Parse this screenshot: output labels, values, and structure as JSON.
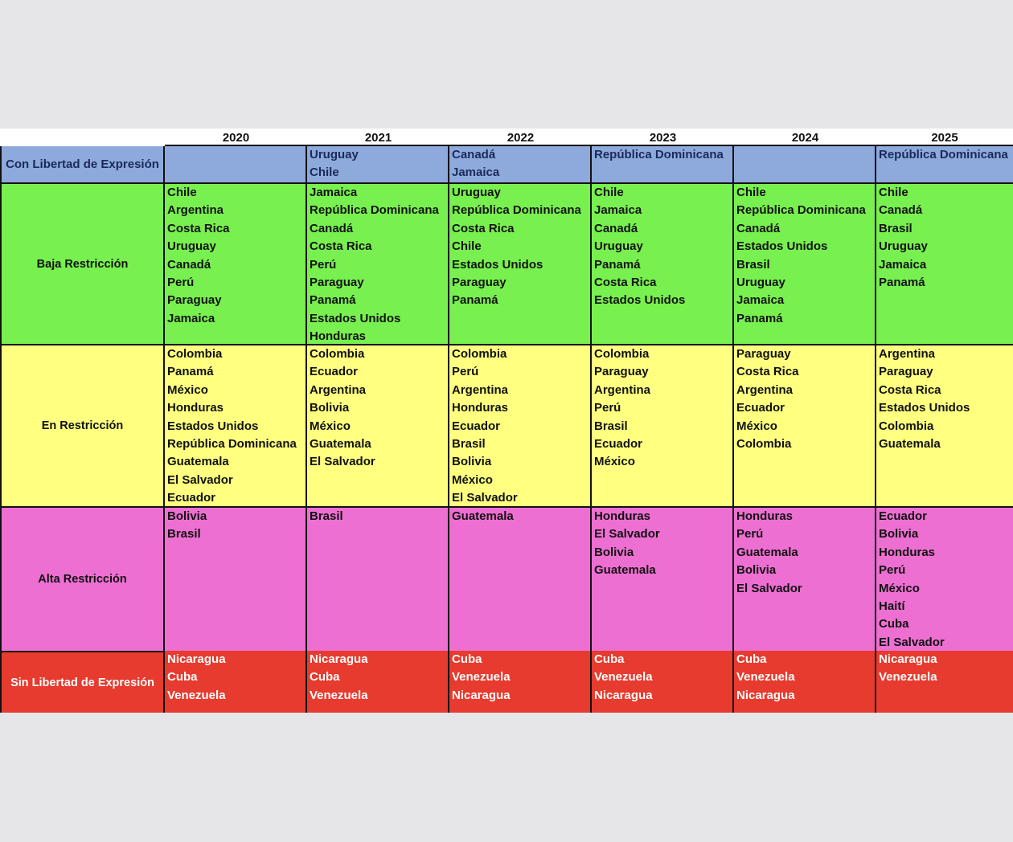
{
  "table": {
    "years": [
      "2020",
      "2021",
      "2022",
      "2023",
      "2024",
      "2025"
    ],
    "rows": [
      {
        "label": "Con Libertad de Expresión",
        "cells": [
          [],
          [
            "Uruguay",
            "Chile"
          ],
          [
            "Canadá",
            "Jamaica"
          ],
          [
            "República Dominicana"
          ],
          [],
          [
            "República Dominicana"
          ]
        ]
      },
      {
        "label": "Baja Restricción",
        "cells": [
          [
            "Chile",
            "Argentina",
            "Costa Rica",
            "Uruguay",
            "Canadá",
            "Perú",
            "Paraguay",
            "Jamaica"
          ],
          [
            "Jamaica",
            "República Dominicana",
            "Canadá",
            "Costa Rica",
            "Perú",
            "Paraguay",
            "Panamá",
            "Estados Unidos",
            "Honduras"
          ],
          [
            "Uruguay",
            "República Dominicana",
            "Costa Rica",
            "Chile",
            "Estados Unidos",
            "Paraguay",
            "Panamá"
          ],
          [
            "Chile",
            "Jamaica",
            "Canadá",
            "Uruguay",
            "Panamá",
            "Costa Rica",
            "Estados Unidos"
          ],
          [
            "Chile",
            "República Dominicana",
            "Canadá",
            "Estados Unidos",
            "Brasil",
            "Uruguay",
            "Jamaica",
            "Panamá"
          ],
          [
            "Chile",
            "Canadá",
            "Brasil",
            "Uruguay",
            "Jamaica",
            "Panamá"
          ]
        ]
      },
      {
        "label": "En Restricción",
        "cells": [
          [
            "Colombia",
            "Panamá",
            "México",
            "Honduras",
            "Estados Unidos",
            "República Dominicana",
            "Guatemala",
            "El Salvador",
            "Ecuador"
          ],
          [
            "Colombia",
            "Ecuador",
            "Argentina",
            "Bolivia",
            "México",
            "Guatemala",
            "El Salvador"
          ],
          [
            "Colombia",
            "Perú",
            "Argentina",
            "Honduras",
            "Ecuador",
            "Brasil",
            "Bolivia",
            "México",
            "El Salvador"
          ],
          [
            "Colombia",
            "Paraguay",
            "Argentina",
            "Perú",
            "Brasil",
            "Ecuador",
            "México"
          ],
          [
            "Paraguay",
            "Costa Rica",
            "Argentina",
            "Ecuador",
            "México",
            "Colombia"
          ],
          [
            "Argentina",
            "Paraguay",
            "Costa Rica",
            "Estados Unidos",
            "Colombia",
            "Guatemala"
          ]
        ]
      },
      {
        "label": "Alta Restricción",
        "cells": [
          [
            "Bolivia",
            "Brasil"
          ],
          [
            "Brasil"
          ],
          [
            "Guatemala"
          ],
          [
            "Honduras",
            "El Salvador",
            "Bolivia",
            "Guatemala"
          ],
          [
            "Honduras",
            "Perú",
            "Guatemala",
            "Bolivia",
            "El Salvador"
          ],
          [
            "Ecuador",
            "Bolivia",
            "Honduras",
            "Perú",
            "México",
            "Haití",
            "Cuba",
            "El Salvador"
          ]
        ]
      },
      {
        "label": "Sin Libertad de Expresión",
        "cells": [
          [
            "Nicaragua",
            "Cuba",
            "Venezuela"
          ],
          [
            "Nicaragua",
            "Cuba",
            "Venezuela"
          ],
          [
            "Cuba",
            "Venezuela",
            "Nicaragua"
          ],
          [
            "Cuba",
            "Venezuela",
            "Nicaragua"
          ],
          [
            "Cuba",
            "Venezuela",
            "Nicaragua"
          ],
          [
            "Nicaragua",
            "Venezuela"
          ]
        ]
      }
    ]
  }
}
